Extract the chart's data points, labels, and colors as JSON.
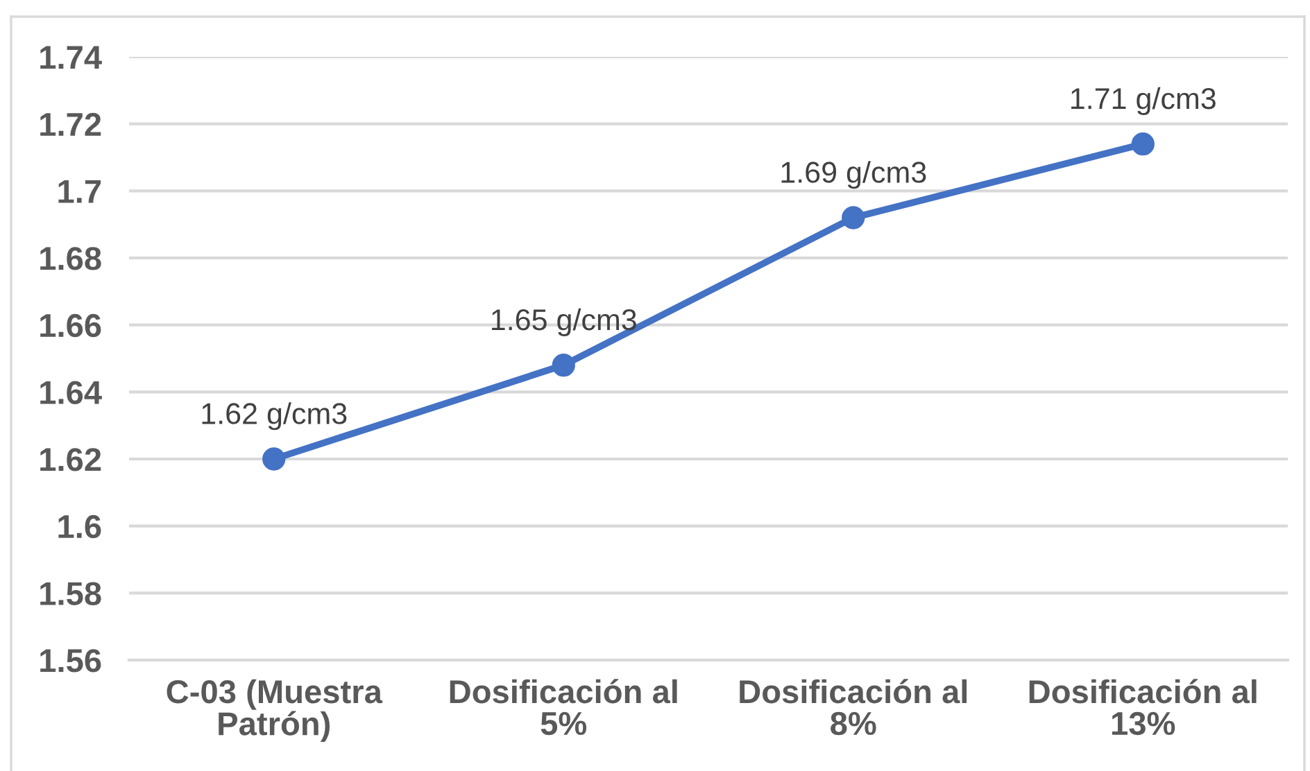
{
  "chart_data": {
    "type": "line",
    "categories": [
      "C-03 (Muestra\nPatrón)",
      "Dosificación al\n5%",
      "Dosificación al\n8%",
      "Dosificación al\n13%"
    ],
    "values": [
      1.62,
      1.648,
      1.692,
      1.714
    ],
    "color": "#4472c4",
    "value_labels": [
      "1.62 g/cm3",
      "1.65 g/cm3",
      "1.69 g/cm3",
      "1.71 g/cm3"
    ],
    "ylim": [
      1.56,
      1.74
    ],
    "yticks": [
      1.56,
      1.58,
      1.6,
      1.62,
      1.64,
      1.66,
      1.68,
      1.7,
      1.72,
      1.74
    ],
    "grid": "y",
    "marker": "circle",
    "line_style": "solid"
  }
}
